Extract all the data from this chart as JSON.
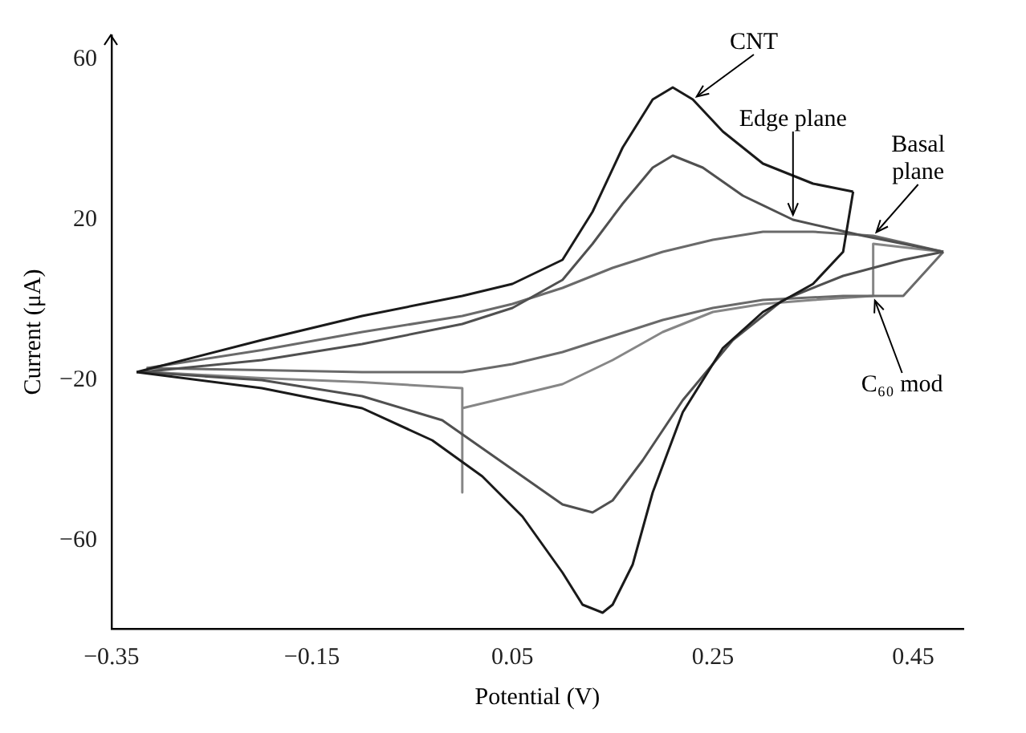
{
  "chart_data": {
    "type": "line",
    "xlabel": "Potential (V)",
    "ylabel": "Current (μA)",
    "xlim": [
      -0.35,
      0.5
    ],
    "xticks": [
      -0.35,
      -0.15,
      0.05,
      0.25,
      0.45
    ],
    "ylim": [
      -82,
      66
    ],
    "yticks": [
      -60,
      -20,
      20,
      60
    ],
    "grid": false,
    "legend": false,
    "marker": "none",
    "line_style": "solid",
    "series": [
      {
        "color": "#1a1a1a",
        "x": [
          -0.325,
          -0.2,
          -0.1,
          0,
          0.05,
          0.1,
          0.13,
          0.16,
          0.19,
          0.21,
          0.23,
          0.26,
          0.3,
          0.35,
          0.39
        ],
        "values": [
          -18,
          -10,
          -4,
          1,
          4,
          10,
          22,
          38,
          50,
          53,
          50,
          42,
          34,
          29,
          27
        ]
      },
      {
        "color": "#1a1a1a",
        "x": [
          -0.325,
          -0.2,
          -0.1,
          -0.03,
          0.02,
          0.06,
          0.1,
          0.12,
          0.14,
          0.15,
          0.17,
          0.19,
          0.22,
          0.26,
          0.3,
          0.35,
          0.38,
          0.39
        ],
        "values": [
          -18,
          -22,
          -27,
          -35,
          -44,
          -54,
          -68,
          -76,
          -78,
          -76,
          -66,
          -48,
          -28,
          -12,
          -3,
          4,
          12,
          27
        ]
      },
      {
        "color": "#505050",
        "x": [
          -0.32,
          -0.2,
          -0.1,
          0,
          0.05,
          0.1,
          0.13,
          0.16,
          0.19,
          0.21,
          0.24,
          0.28,
          0.33,
          0.4,
          0.48
        ],
        "values": [
          -18,
          -15,
          -11,
          -6,
          -2,
          5,
          14,
          24,
          33,
          36,
          33,
          26,
          20,
          16,
          12
        ]
      },
      {
        "color": "#505050",
        "x": [
          -0.32,
          -0.2,
          -0.1,
          -0.02,
          0.02,
          0.06,
          0.1,
          0.13,
          0.15,
          0.18,
          0.22,
          0.27,
          0.32,
          0.38,
          0.44,
          0.48
        ],
        "values": [
          -18,
          -20,
          -24,
          -30,
          -37,
          -44,
          -51,
          -53,
          -50,
          -40,
          -25,
          -10,
          0,
          6,
          10,
          12
        ]
      },
      {
        "color": "#6a6a6a",
        "x": [
          -0.315,
          -0.2,
          -0.1,
          0,
          0.05,
          0.1,
          0.15,
          0.2,
          0.25,
          0.3,
          0.35,
          0.41,
          0.48
        ],
        "values": [
          -17,
          -12.5,
          -8,
          -4,
          -1,
          3,
          8,
          12,
          15,
          17,
          17,
          16,
          12
        ]
      },
      {
        "color": "#6a6a6a",
        "x": [
          -0.315,
          -0.2,
          -0.1,
          0,
          0.05,
          0.1,
          0.15,
          0.2,
          0.25,
          0.3,
          0.38,
          0.44,
          0.48
        ],
        "values": [
          -17,
          -17.5,
          -18,
          -18,
          -16,
          -13,
          -9,
          -5,
          -2,
          0,
          1,
          1,
          12
        ]
      },
      {
        "color": "#868686",
        "x": [
          -0.31,
          -0.2,
          -0.1,
          0,
          0,
          0,
          0.05,
          0.1,
          0.15,
          0.2,
          0.25,
          0.3,
          0.35,
          0.41,
          0.41,
          0.48
        ],
        "values": [
          -18,
          -19.5,
          -20.5,
          -22,
          -48,
          -27,
          -24,
          -21,
          -15,
          -8,
          -3,
          -1,
          0,
          1,
          14,
          12
        ]
      }
    ],
    "annotations": [
      {
        "text": "CNT",
        "x": 0.23,
        "y": 50
      },
      {
        "text": "Edge plane",
        "x": 0.33,
        "y": 20
      },
      {
        "text": "Basal plane",
        "x": 0.41,
        "y": 16
      },
      {
        "text": "C₆₀ mod",
        "x": 0.41,
        "y": 1
      }
    ]
  }
}
